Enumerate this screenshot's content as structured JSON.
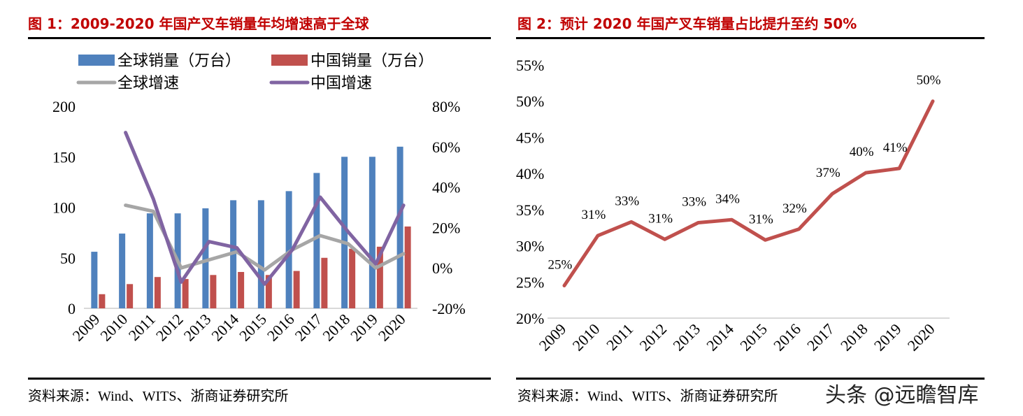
{
  "colors": {
    "title": "#C00000",
    "global_sales": "#4F81BD",
    "china_sales": "#C0504D",
    "global_growth": "#A6A6A6",
    "china_growth": "#8064A2",
    "share_line": "#C0504D",
    "axis": "#D9D9D9"
  },
  "watermark": "头条 @远瞻智库",
  "chart_data": [
    {
      "type": "bar",
      "title": "图 1：2009-2020 年国产叉车销量年均增速高于全球",
      "source": "资料来源：Wind、WITS、浙商证券研究所",
      "categories": [
        "2009",
        "2010",
        "2011",
        "2012",
        "2013",
        "2014",
        "2015",
        "2016",
        "2017",
        "2018",
        "2019",
        "2020"
      ],
      "legend_placement": "top",
      "left_axis": {
        "ylim": [
          0,
          200
        ],
        "ticks": [
          "0",
          "50",
          "100",
          "150",
          "200"
        ],
        "tick_values": [
          0,
          50,
          100,
          150,
          200
        ]
      },
      "right_axis": {
        "ylim": [
          -20,
          80
        ],
        "ticks": [
          "-20%",
          "0%",
          "20%",
          "40%",
          "60%",
          "80%"
        ],
        "tick_values": [
          -20,
          0,
          20,
          40,
          60,
          80
        ]
      },
      "series": [
        {
          "name": "全球销量（万台）",
          "kind": "bar",
          "axis": "left",
          "color_key": "global_sales",
          "values": [
            56,
            74,
            94,
            94,
            99,
            107,
            107,
            116,
            134,
            150,
            150,
            160
          ]
        },
        {
          "name": "中国销量（万台）",
          "kind": "bar",
          "axis": "left",
          "color_key": "china_sales",
          "values": [
            14,
            24,
            31,
            29,
            33,
            36,
            33,
            37,
            50,
            59,
            61,
            81
          ]
        },
        {
          "name": "全球增速",
          "kind": "line",
          "axis": "right",
          "color_key": "global_growth",
          "values": [
            null,
            31,
            28,
            0,
            4,
            8,
            -1,
            9,
            16,
            12,
            0,
            7
          ]
        },
        {
          "name": "中国增速",
          "kind": "line",
          "axis": "right",
          "color_key": "china_growth",
          "values": [
            null,
            67,
            34,
            -7,
            13,
            10,
            -8,
            9,
            35,
            18,
            2,
            31
          ]
        }
      ]
    },
    {
      "type": "line",
      "title": "图 2：预计 2020 年国产叉车销量占比提升至约 50%",
      "source": "资料来源：Wind、WITS、浙商证券研究所",
      "categories": [
        "2009",
        "2010",
        "2011",
        "2012",
        "2013",
        "2014",
        "2015",
        "2016",
        "2017",
        "2018",
        "2019",
        "2020"
      ],
      "ylim": [
        20,
        55
      ],
      "ticks": [
        "20%",
        "25%",
        "30%",
        "35%",
        "40%",
        "45%",
        "50%",
        "55%"
      ],
      "tick_values": [
        20,
        25,
        30,
        35,
        40,
        45,
        50,
        55
      ],
      "series": [
        {
          "name": "国产叉车销量占比",
          "color_key": "share_line",
          "values": [
            24.5,
            31.4,
            33.3,
            30.9,
            33.2,
            33.6,
            30.8,
            32.3,
            37.2,
            40.1,
            40.7,
            50.0
          ],
          "labels": [
            "25%",
            "31%",
            "33%",
            "31%",
            "33%",
            "34%",
            "31%",
            "32%",
            "37%",
            "40%",
            "41%",
            "50%"
          ]
        }
      ]
    }
  ]
}
